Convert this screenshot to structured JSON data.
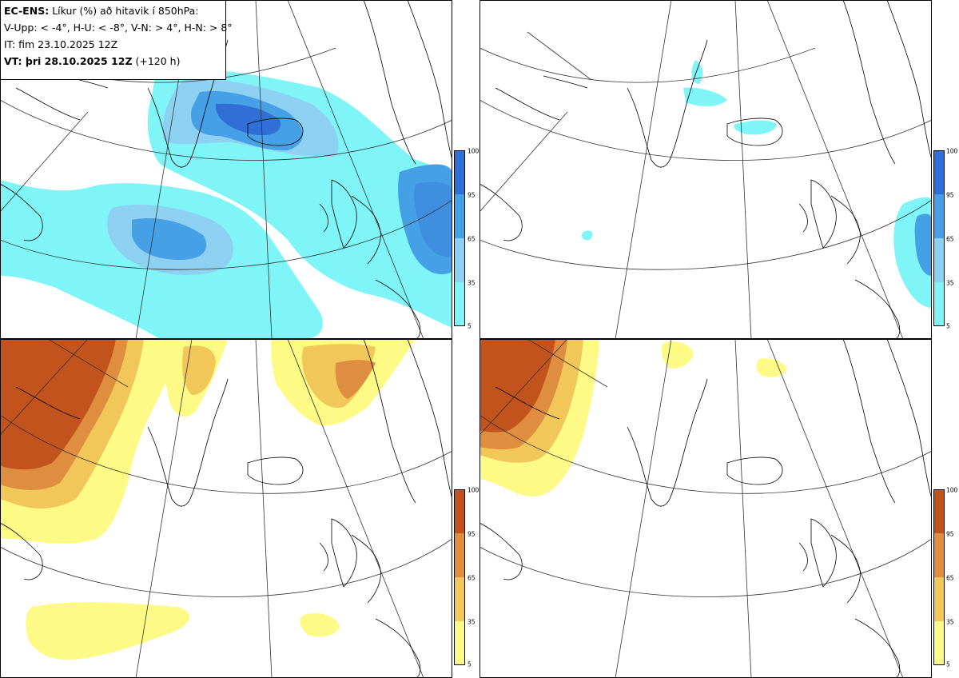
{
  "header": {
    "model": "EC-ENS:",
    "title": "Líkur (%) að hitavik í 850hPa:",
    "legend_line": "V-Upp: < -4°, H-U: < -8°, V-N: > 4°, H-N: > 8°",
    "init_time": "IT: fim 23.10.2025 12Z",
    "valid_prefix": "VT: þri 28.10.2025 12Z",
    "lead": "(+120 h)"
  },
  "colorbar_cold": {
    "ticks": [
      "100",
      "95",
      "65",
      "35",
      "5"
    ],
    "colors": [
      "#2f6fd6",
      "#46a0e6",
      "#8ed0f2",
      "#7ff5f8"
    ]
  },
  "colorbar_warm": {
    "ticks": [
      "100",
      "95",
      "65",
      "35",
      "5"
    ],
    "colors": [
      "#c3531d",
      "#de8e3e",
      "#f2c75a",
      "#fdfa86"
    ]
  },
  "panels": [
    {
      "name": "V-Upp",
      "anomaly": "< -4°"
    },
    {
      "name": "H-U",
      "anomaly": "< -8°"
    },
    {
      "name": "V-N",
      "anomaly": "> 4°"
    },
    {
      "name": "H-N",
      "anomaly": "> 8°"
    }
  ]
}
